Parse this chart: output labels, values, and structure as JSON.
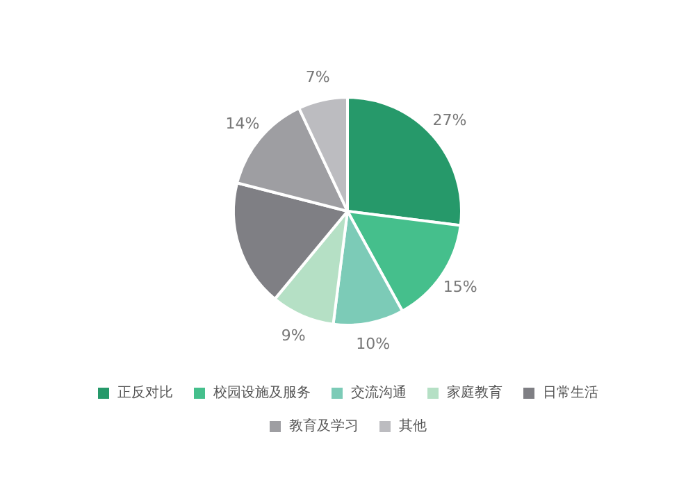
{
  "chart_data": {
    "type": "pie",
    "categories": [
      "正反对比",
      "校园设施及服务",
      "交流沟通",
      "家庭教育",
      "日常生活",
      "教育及学习",
      "其他"
    ],
    "values": [
      27,
      15,
      10,
      9,
      18,
      14,
      7
    ],
    "colors": [
      "#26996a",
      "#45bf8c",
      "#7ccbb7",
      "#b5e0c5",
      "#7f7f84",
      "#9e9ea2",
      "#bcbcc0"
    ],
    "value_labels": [
      "27%",
      "15%",
      "10%",
      "9%",
      null,
      "14%",
      "7%"
    ],
    "legend": "bottom"
  }
}
